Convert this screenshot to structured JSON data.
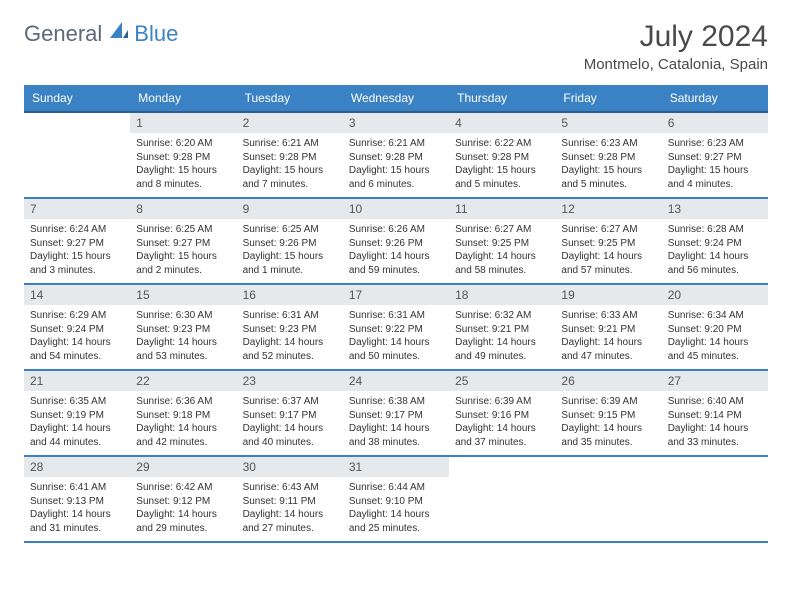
{
  "logo": {
    "part1": "General",
    "part2": "Blue"
  },
  "title": "July 2024",
  "location": "Montmelo, Catalonia, Spain",
  "colors": {
    "header_bg": "#3b82c4",
    "header_text": "#ffffff",
    "daynum_bg": "#e5e9ec",
    "border": "#3b82c4",
    "logo_gray": "#5a6a78",
    "logo_blue": "#3b82c4"
  },
  "weekdays": [
    "Sunday",
    "Monday",
    "Tuesday",
    "Wednesday",
    "Thursday",
    "Friday",
    "Saturday"
  ],
  "grid": [
    [
      null,
      {
        "n": "1",
        "sr": "6:20 AM",
        "ss": "9:28 PM",
        "dl": "15 hours and 8 minutes."
      },
      {
        "n": "2",
        "sr": "6:21 AM",
        "ss": "9:28 PM",
        "dl": "15 hours and 7 minutes."
      },
      {
        "n": "3",
        "sr": "6:21 AM",
        "ss": "9:28 PM",
        "dl": "15 hours and 6 minutes."
      },
      {
        "n": "4",
        "sr": "6:22 AM",
        "ss": "9:28 PM",
        "dl": "15 hours and 5 minutes."
      },
      {
        "n": "5",
        "sr": "6:23 AM",
        "ss": "9:28 PM",
        "dl": "15 hours and 5 minutes."
      },
      {
        "n": "6",
        "sr": "6:23 AM",
        "ss": "9:27 PM",
        "dl": "15 hours and 4 minutes."
      }
    ],
    [
      {
        "n": "7",
        "sr": "6:24 AM",
        "ss": "9:27 PM",
        "dl": "15 hours and 3 minutes."
      },
      {
        "n": "8",
        "sr": "6:25 AM",
        "ss": "9:27 PM",
        "dl": "15 hours and 2 minutes."
      },
      {
        "n": "9",
        "sr": "6:25 AM",
        "ss": "9:26 PM",
        "dl": "15 hours and 1 minute."
      },
      {
        "n": "10",
        "sr": "6:26 AM",
        "ss": "9:26 PM",
        "dl": "14 hours and 59 minutes."
      },
      {
        "n": "11",
        "sr": "6:27 AM",
        "ss": "9:25 PM",
        "dl": "14 hours and 58 minutes."
      },
      {
        "n": "12",
        "sr": "6:27 AM",
        "ss": "9:25 PM",
        "dl": "14 hours and 57 minutes."
      },
      {
        "n": "13",
        "sr": "6:28 AM",
        "ss": "9:24 PM",
        "dl": "14 hours and 56 minutes."
      }
    ],
    [
      {
        "n": "14",
        "sr": "6:29 AM",
        "ss": "9:24 PM",
        "dl": "14 hours and 54 minutes."
      },
      {
        "n": "15",
        "sr": "6:30 AM",
        "ss": "9:23 PM",
        "dl": "14 hours and 53 minutes."
      },
      {
        "n": "16",
        "sr": "6:31 AM",
        "ss": "9:23 PM",
        "dl": "14 hours and 52 minutes."
      },
      {
        "n": "17",
        "sr": "6:31 AM",
        "ss": "9:22 PM",
        "dl": "14 hours and 50 minutes."
      },
      {
        "n": "18",
        "sr": "6:32 AM",
        "ss": "9:21 PM",
        "dl": "14 hours and 49 minutes."
      },
      {
        "n": "19",
        "sr": "6:33 AM",
        "ss": "9:21 PM",
        "dl": "14 hours and 47 minutes."
      },
      {
        "n": "20",
        "sr": "6:34 AM",
        "ss": "9:20 PM",
        "dl": "14 hours and 45 minutes."
      }
    ],
    [
      {
        "n": "21",
        "sr": "6:35 AM",
        "ss": "9:19 PM",
        "dl": "14 hours and 44 minutes."
      },
      {
        "n": "22",
        "sr": "6:36 AM",
        "ss": "9:18 PM",
        "dl": "14 hours and 42 minutes."
      },
      {
        "n": "23",
        "sr": "6:37 AM",
        "ss": "9:17 PM",
        "dl": "14 hours and 40 minutes."
      },
      {
        "n": "24",
        "sr": "6:38 AM",
        "ss": "9:17 PM",
        "dl": "14 hours and 38 minutes."
      },
      {
        "n": "25",
        "sr": "6:39 AM",
        "ss": "9:16 PM",
        "dl": "14 hours and 37 minutes."
      },
      {
        "n": "26",
        "sr": "6:39 AM",
        "ss": "9:15 PM",
        "dl": "14 hours and 35 minutes."
      },
      {
        "n": "27",
        "sr": "6:40 AM",
        "ss": "9:14 PM",
        "dl": "14 hours and 33 minutes."
      }
    ],
    [
      {
        "n": "28",
        "sr": "6:41 AM",
        "ss": "9:13 PM",
        "dl": "14 hours and 31 minutes."
      },
      {
        "n": "29",
        "sr": "6:42 AM",
        "ss": "9:12 PM",
        "dl": "14 hours and 29 minutes."
      },
      {
        "n": "30",
        "sr": "6:43 AM",
        "ss": "9:11 PM",
        "dl": "14 hours and 27 minutes."
      },
      {
        "n": "31",
        "sr": "6:44 AM",
        "ss": "9:10 PM",
        "dl": "14 hours and 25 minutes."
      },
      null,
      null,
      null
    ]
  ],
  "labels": {
    "sunrise": "Sunrise:",
    "sunset": "Sunset:",
    "daylight": "Daylight:"
  }
}
